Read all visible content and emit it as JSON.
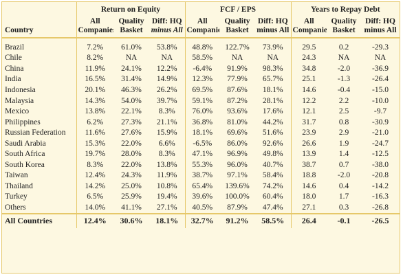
{
  "header": {
    "country": "Country",
    "groups": [
      {
        "title": "Return on Equity",
        "columns": [
          [
            "All",
            "Companies"
          ],
          [
            "Quality",
            "Basket"
          ],
          [
            "Diff: HQ",
            "minus All"
          ]
        ]
      },
      {
        "title": "FCF / EPS",
        "columns": [
          [
            "All",
            "Companies"
          ],
          [
            "Quality",
            "Basket"
          ],
          [
            "Diff: HQ",
            "minus All"
          ]
        ]
      },
      {
        "title": "Years to Repay Debt",
        "columns": [
          [
            "All",
            "Companies"
          ],
          [
            "Quality",
            "Basket"
          ],
          [
            "Diff: HQ",
            "minus All"
          ]
        ]
      }
    ]
  },
  "rows": [
    {
      "country": "Brazil",
      "values": [
        "7.2%",
        "61.0%",
        "53.8%",
        "48.8%",
        "122.7%",
        "73.9%",
        "29.5",
        "0.2",
        "-29.3"
      ]
    },
    {
      "country": "Chile",
      "values": [
        "8.2%",
        "NA",
        "NA",
        "58.5%",
        "NA",
        "NA",
        "24.3",
        "NA",
        "NA"
      ]
    },
    {
      "country": "China",
      "values": [
        "11.9%",
        "24.1%",
        "12.2%",
        "-6.4%",
        "91.9%",
        "98.3%",
        "34.8",
        "-2.0",
        "-36.9"
      ]
    },
    {
      "country": "India",
      "values": [
        "16.5%",
        "31.4%",
        "14.9%",
        "12.3%",
        "77.9%",
        "65.7%",
        "25.1",
        "-1.3",
        "-26.4"
      ]
    },
    {
      "country": "Indonesia",
      "values": [
        "20.1%",
        "46.3%",
        "26.2%",
        "69.5%",
        "87.6%",
        "18.1%",
        "14.6",
        "-0.4",
        "-15.0"
      ]
    },
    {
      "country": "Malaysia",
      "values": [
        "14.3%",
        "54.0%",
        "39.7%",
        "59.1%",
        "87.2%",
        "28.1%",
        "12.2",
        "2.2",
        "-10.0"
      ]
    },
    {
      "country": "Mexico",
      "values": [
        "13.8%",
        "22.1%",
        "8.3%",
        "76.0%",
        "93.6%",
        "17.6%",
        "12.1",
        "2.5",
        "-9.7"
      ]
    },
    {
      "country": "Philippines",
      "values": [
        "6.2%",
        "27.3%",
        "21.1%",
        "36.8%",
        "81.0%",
        "44.2%",
        "31.7",
        "0.8",
        "-30.9"
      ]
    },
    {
      "country": "Russian Federation",
      "values": [
        "11.6%",
        "27.6%",
        "15.9%",
        "18.1%",
        "69.6%",
        "51.6%",
        "23.9",
        "2.9",
        "-21.0"
      ]
    },
    {
      "country": "Saudi Arabia",
      "values": [
        "15.3%",
        "22.0%",
        "6.6%",
        "-6.5%",
        "86.0%",
        "92.6%",
        "26.6",
        "1.9",
        "-24.7"
      ]
    },
    {
      "country": "South Africa",
      "values": [
        "19.7%",
        "28.0%",
        "8.3%",
        "47.1%",
        "96.9%",
        "49.8%",
        "13.9",
        "1.4",
        "-12.5"
      ]
    },
    {
      "country": "South Korea",
      "values": [
        "8.3%",
        "22.0%",
        "13.8%",
        "55.3%",
        "96.0%",
        "40.7%",
        "38.7",
        "0.7",
        "-38.0"
      ]
    },
    {
      "country": "Taiwan",
      "values": [
        "12.4%",
        "24.3%",
        "11.9%",
        "38.7%",
        "97.1%",
        "58.4%",
        "18.8",
        "-2.0",
        "-20.8"
      ]
    },
    {
      "country": "Thailand",
      "values": [
        "14.2%",
        "25.0%",
        "10.8%",
        "65.4%",
        "139.6%",
        "74.2%",
        "14.6",
        "0.4",
        "-14.2"
      ]
    },
    {
      "country": "Turkey",
      "values": [
        "6.5%",
        "25.9%",
        "19.4%",
        "39.6%",
        "100.0%",
        "60.4%",
        "18.0",
        "1.7",
        "-16.3"
      ]
    },
    {
      "country": "Others",
      "values": [
        "14.0%",
        "41.1%",
        "27.1%",
        "40.5%",
        "87.9%",
        "47.4%",
        "27.1",
        "0.3",
        "-26.8"
      ]
    }
  ],
  "total": {
    "country": "All Countries",
    "values": [
      "12.4%",
      "30.6%",
      "18.1%",
      "32.7%",
      "91.2%",
      "58.5%",
      "26.4",
      "-0.1",
      "-26.5"
    ]
  }
}
